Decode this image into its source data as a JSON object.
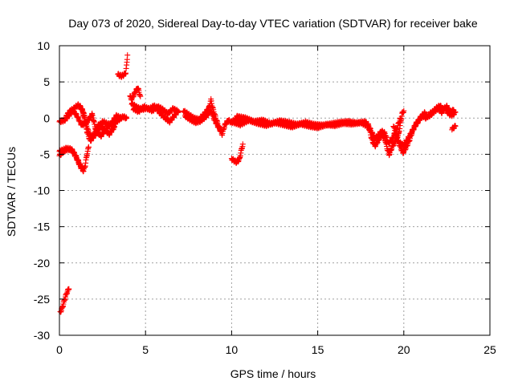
{
  "chart_data": {
    "type": "scatter",
    "title": "Day 073 of 2020, Sidereal Day-to-day VTEC variation (SDTVAR) for receiver bake",
    "xlabel": "GPS time / hours",
    "ylabel": "SDTVAR / TECUs",
    "xlim": [
      0,
      25
    ],
    "ylim": [
      -30,
      10
    ],
    "xticks": [
      0,
      5,
      10,
      15,
      20,
      25
    ],
    "yticks": [
      -30,
      -25,
      -20,
      -15,
      -10,
      -5,
      0,
      5,
      10
    ],
    "grid": true,
    "marker": "+",
    "marker_color": "#ff0000",
    "series": [
      {
        "name": "SDTVAR",
        "segments": [
          [
            [
              0.0,
              -0.5
            ],
            [
              0.3,
              -0.3
            ],
            [
              0.6,
              0.5
            ],
            [
              0.9,
              1.5
            ],
            [
              1.1,
              1.8
            ],
            [
              1.3,
              1.2
            ],
            [
              1.5,
              -0.5
            ],
            [
              1.7,
              -2.0
            ],
            [
              1.9,
              -2.8
            ],
            [
              2.2,
              -2.0
            ],
            [
              2.5,
              -0.5
            ],
            [
              2.8,
              -0.8
            ],
            [
              3.1,
              -1.0
            ],
            [
              3.4,
              -0.3
            ],
            [
              3.7,
              0.2
            ],
            [
              3.9,
              0.0
            ]
          ],
          [
            [
              0.4,
              0.3
            ],
            [
              0.7,
              1.2
            ],
            [
              1.0,
              0.4
            ],
            [
              1.3,
              -1.0
            ],
            [
              1.6,
              -0.5
            ],
            [
              1.9,
              0.5
            ],
            [
              2.1,
              -1.5
            ],
            [
              2.4,
              -2.5
            ],
            [
              2.7,
              -1.5
            ],
            [
              3.0,
              -0.8
            ],
            [
              3.3,
              0.3
            ],
            [
              3.6,
              0.0
            ]
          ],
          [
            [
              1.2,
              1.6
            ],
            [
              1.4,
              0.8
            ],
            [
              1.6,
              -1.8
            ],
            [
              1.8,
              -3.2
            ],
            [
              2.0,
              -2.2
            ],
            [
              2.3,
              -0.8
            ],
            [
              2.6,
              -1.6
            ],
            [
              2.9,
              -2.2
            ],
            [
              3.2,
              -1.2
            ]
          ],
          [
            [
              0.0,
              -5.2
            ],
            [
              0.15,
              -4.8
            ],
            [
              0.3,
              -4.5
            ],
            [
              0.5,
              -4.3
            ],
            [
              0.7,
              -4.4
            ],
            [
              0.9,
              -5.0
            ],
            [
              1.1,
              -6.0
            ],
            [
              1.25,
              -6.8
            ],
            [
              1.4,
              -7.3
            ],
            [
              1.5,
              -6.5
            ],
            [
              1.6,
              -5.0
            ],
            [
              1.7,
              -4.0
            ]
          ],
          [
            [
              0.0,
              -4.6
            ],
            [
              0.2,
              -4.4
            ],
            [
              0.4,
              -4.2
            ],
            [
              0.7,
              -4.3
            ],
            [
              0.95,
              -5.3
            ],
            [
              1.15,
              -6.3
            ],
            [
              1.35,
              -7.0
            ]
          ],
          [
            [
              0.05,
              -26.8
            ],
            [
              0.15,
              -26.3
            ],
            [
              0.25,
              -25.5
            ],
            [
              0.35,
              -24.7
            ],
            [
              0.45,
              -24.0
            ],
            [
              0.55,
              -23.6
            ]
          ],
          [
            [
              3.4,
              6.0
            ],
            [
              3.6,
              5.8
            ],
            [
              3.75,
              6.0
            ],
            [
              3.85,
              6.3
            ],
            [
              3.9,
              7.2
            ],
            [
              3.95,
              8.7
            ]
          ],
          [
            [
              4.1,
              3.0
            ],
            [
              4.2,
              2.6
            ],
            [
              4.4,
              3.6
            ],
            [
              4.55,
              4.2
            ],
            [
              4.7,
              3.0
            ]
          ],
          [
            [
              4.2,
              2.0
            ],
            [
              4.5,
              1.5
            ],
            [
              4.8,
              1.2
            ],
            [
              5.1,
              1.4
            ],
            [
              5.4,
              1.0
            ],
            [
              5.7,
              1.6
            ],
            [
              6.0,
              1.2
            ],
            [
              6.3,
              0.6
            ],
            [
              6.6,
              1.3
            ],
            [
              6.9,
              0.9
            ]
          ],
          [
            [
              4.3,
              1.3
            ],
            [
              4.6,
              0.9
            ],
            [
              4.9,
              1.6
            ],
            [
              5.2,
              1.2
            ],
            [
              5.5,
              1.7
            ],
            [
              5.8,
              0.8
            ],
            [
              6.1,
              0.1
            ],
            [
              6.4,
              -0.5
            ],
            [
              6.7,
              0.4
            ],
            [
              6.9,
              1.0
            ]
          ],
          [
            [
              7.2,
              1.0
            ],
            [
              7.5,
              0.5
            ],
            [
              7.8,
              0.0
            ],
            [
              8.1,
              -0.2
            ],
            [
              8.3,
              0.3
            ],
            [
              8.5,
              0.8
            ],
            [
              8.7,
              1.5
            ],
            [
              8.8,
              2.5
            ],
            [
              8.9,
              1.4
            ],
            [
              9.0,
              0.6
            ],
            [
              9.15,
              -0.5
            ],
            [
              9.3,
              -1.5
            ],
            [
              9.45,
              -2.2
            ],
            [
              9.6,
              -1.0
            ],
            [
              9.8,
              -0.3
            ],
            [
              10.0,
              -0.6
            ],
            [
              10.3,
              0.0
            ],
            [
              10.6,
              -0.2
            ]
          ],
          [
            [
              7.3,
              0.3
            ],
            [
              7.6,
              -0.2
            ],
            [
              7.9,
              -0.6
            ],
            [
              8.2,
              -0.4
            ],
            [
              8.5,
              0.2
            ],
            [
              8.8,
              1.0
            ],
            [
              9.0,
              -0.2
            ],
            [
              9.2,
              -1.1
            ],
            [
              9.4,
              -1.7
            ]
          ],
          [
            [
              10.0,
              -5.6
            ],
            [
              10.15,
              -5.9
            ],
            [
              10.3,
              -6.1
            ],
            [
              10.45,
              -5.7
            ],
            [
              10.55,
              -4.6
            ],
            [
              10.65,
              -3.6
            ]
          ],
          [
            [
              10.0,
              -0.5
            ],
            [
              10.5,
              -0.9
            ],
            [
              11.0,
              -0.3
            ],
            [
              11.5,
              -0.7
            ],
            [
              12.0,
              -1.0
            ],
            [
              12.5,
              -0.6
            ],
            [
              13.0,
              -0.9
            ],
            [
              13.5,
              -1.2
            ],
            [
              14.0,
              -0.8
            ],
            [
              14.5,
              -1.1
            ],
            [
              15.0,
              -1.3
            ],
            [
              15.5,
              -0.9
            ],
            [
              16.0,
              -1.0
            ],
            [
              16.5,
              -0.7
            ],
            [
              17.0,
              -0.8
            ],
            [
              17.5,
              -0.6
            ],
            [
              17.8,
              -1.0
            ]
          ],
          [
            [
              10.3,
              0.2
            ],
            [
              10.8,
              0.0
            ],
            [
              11.3,
              -0.5
            ],
            [
              11.8,
              -0.3
            ],
            [
              12.3,
              -0.8
            ],
            [
              12.8,
              -0.4
            ],
            [
              13.3,
              -0.6
            ],
            [
              13.8,
              -0.9
            ],
            [
              14.3,
              -0.6
            ],
            [
              14.8,
              -0.9
            ],
            [
              15.3,
              -1.0
            ],
            [
              15.8,
              -0.8
            ],
            [
              16.3,
              -0.6
            ],
            [
              16.8,
              -0.5
            ],
            [
              17.3,
              -0.7
            ],
            [
              17.8,
              -0.5
            ]
          ],
          [
            [
              17.8,
              -0.6
            ],
            [
              18.0,
              -1.5
            ],
            [
              18.1,
              -2.5
            ],
            [
              18.2,
              -3.3
            ],
            [
              18.35,
              -3.8
            ],
            [
              18.5,
              -3.2
            ],
            [
              18.7,
              -2.3
            ],
            [
              18.9,
              -2.8
            ],
            [
              19.05,
              -4.3
            ],
            [
              19.15,
              -5.0
            ],
            [
              19.3,
              -4.1
            ],
            [
              19.5,
              -3.2
            ],
            [
              19.7,
              -2.2
            ],
            [
              19.8,
              -0.8
            ],
            [
              19.9,
              0.6
            ],
            [
              20.0,
              1.0
            ]
          ],
          [
            [
              17.9,
              -0.8
            ],
            [
              18.1,
              -1.8
            ],
            [
              18.3,
              -2.8
            ],
            [
              18.5,
              -2.5
            ],
            [
              18.7,
              -1.8
            ],
            [
              18.9,
              -2.1
            ],
            [
              19.1,
              -3.5
            ],
            [
              19.3,
              -3.0
            ],
            [
              19.6,
              -1.5
            ],
            [
              19.8,
              0.0
            ]
          ],
          [
            [
              19.4,
              -1.0
            ],
            [
              19.6,
              -2.8
            ],
            [
              19.8,
              -4.0
            ],
            [
              19.95,
              -4.8
            ],
            [
              20.1,
              -4.2
            ],
            [
              20.3,
              -3.2
            ],
            [
              20.5,
              -1.8
            ],
            [
              20.7,
              -0.8
            ],
            [
              20.9,
              -0.2
            ],
            [
              21.1,
              0.3
            ],
            [
              21.3,
              0.0
            ],
            [
              21.5,
              0.6
            ],
            [
              21.7,
              0.9
            ],
            [
              21.9,
              1.4
            ],
            [
              22.1,
              1.7
            ],
            [
              22.3,
              1.2
            ],
            [
              22.5,
              1.6
            ],
            [
              22.7,
              0.9
            ],
            [
              22.9,
              1.1
            ]
          ],
          [
            [
              19.7,
              -3.3
            ],
            [
              20.0,
              -3.8
            ],
            [
              20.2,
              -3.0
            ],
            [
              20.4,
              -2.2
            ],
            [
              20.6,
              -1.3
            ],
            [
              20.8,
              -0.6
            ],
            [
              21.0,
              0.2
            ],
            [
              21.2,
              0.7
            ],
            [
              21.4,
              0.2
            ],
            [
              21.6,
              0.5
            ],
            [
              21.8,
              1.0
            ],
            [
              22.0,
              1.3
            ],
            [
              22.2,
              0.8
            ],
            [
              22.4,
              1.4
            ],
            [
              22.6,
              0.6
            ],
            [
              22.8,
              0.4
            ],
            [
              23.0,
              0.8
            ]
          ],
          [
            [
              22.8,
              -1.5
            ],
            [
              22.9,
              -1.3
            ],
            [
              23.0,
              -1.1
            ]
          ]
        ]
      }
    ]
  }
}
